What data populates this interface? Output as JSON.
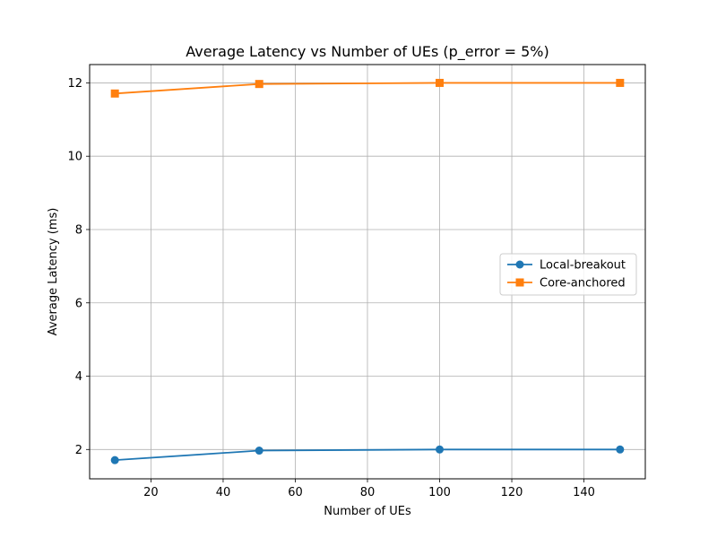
{
  "chart_data": {
    "type": "line",
    "title": "Average Latency vs Number of UEs (p_error = 5%)",
    "xlabel": "Number of UEs",
    "ylabel": "Average Latency (ms)",
    "x": [
      10,
      50,
      100,
      150
    ],
    "xlim": [
      3,
      157
    ],
    "ylim": [
      1.2,
      12.5
    ],
    "xticks": [
      20,
      40,
      60,
      80,
      100,
      120,
      140
    ],
    "yticks": [
      2,
      4,
      6,
      8,
      10,
      12
    ],
    "grid": true,
    "legend_position": "center-right",
    "series": [
      {
        "name": "Local-breakout",
        "values": [
          1.71,
          1.97,
          2.0,
          2.0
        ],
        "color": "#1f77b4",
        "marker": "circle"
      },
      {
        "name": "Core-anchored",
        "values": [
          11.71,
          11.97,
          12.0,
          12.0
        ],
        "color": "#ff7f0e",
        "marker": "square"
      }
    ]
  }
}
